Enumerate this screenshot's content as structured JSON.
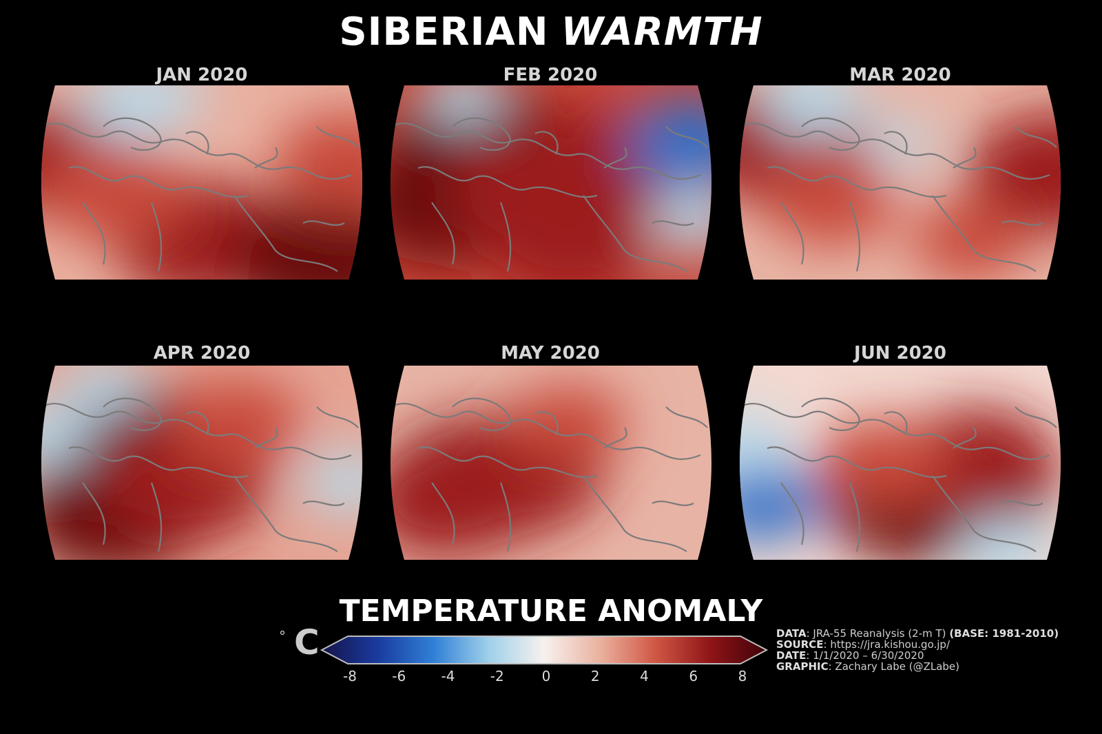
{
  "title": {
    "part1": "SIBERIAN",
    "part2": "WARMTH"
  },
  "panels": [
    {
      "label": "JAN 2020",
      "warm_blobs": [
        [
          0.1,
          0.4,
          0.8
        ],
        [
          0.5,
          0.8,
          0.9
        ],
        [
          0.86,
          0.9,
          1.0
        ],
        [
          0.25,
          0.55,
          0.7
        ],
        [
          0.92,
          0.4,
          0.7
        ]
      ],
      "cool_blobs": [
        [
          0.3,
          0.1,
          0.6
        ],
        [
          0.4,
          0.05,
          0.4
        ]
      ],
      "base": "#e9b0a0"
    },
    {
      "label": "FEB 2020",
      "warm_blobs": [
        [
          0.3,
          0.35,
          1.0
        ],
        [
          0.2,
          0.6,
          0.95
        ],
        [
          0.45,
          0.55,
          0.85
        ],
        [
          0.65,
          0.4,
          0.8
        ],
        [
          0.55,
          0.8,
          0.8
        ]
      ],
      "cool_blobs": [
        [
          0.9,
          0.3,
          0.8
        ],
        [
          0.92,
          0.7,
          0.5
        ],
        [
          0.25,
          0.05,
          0.4
        ]
      ],
      "base": "#c94a3c"
    },
    {
      "label": "MAR 2020",
      "warm_blobs": [
        [
          0.15,
          0.3,
          0.9
        ],
        [
          0.95,
          0.45,
          0.9
        ],
        [
          0.3,
          0.6,
          0.6
        ],
        [
          0.7,
          0.8,
          0.5
        ]
      ],
      "cool_blobs": [
        [
          0.25,
          0.08,
          0.6
        ],
        [
          0.5,
          0.3,
          0.3
        ]
      ],
      "base": "#e8b5a6"
    },
    {
      "label": "APR 2020",
      "warm_blobs": [
        [
          0.3,
          0.45,
          1.0
        ],
        [
          0.25,
          0.75,
          0.95
        ],
        [
          0.45,
          0.6,
          0.85
        ],
        [
          0.6,
          0.3,
          0.6
        ]
      ],
      "cool_blobs": [
        [
          0.05,
          0.35,
          0.5
        ],
        [
          0.92,
          0.6,
          0.5
        ],
        [
          0.22,
          0.1,
          0.4
        ]
      ],
      "base": "#e5a494"
    },
    {
      "label": "MAY 2020",
      "warm_blobs": [
        [
          0.3,
          0.6,
          0.95
        ],
        [
          0.4,
          0.55,
          0.9
        ],
        [
          0.2,
          0.7,
          0.8
        ],
        [
          0.55,
          0.3,
          0.5
        ]
      ],
      "cool_blobs": [],
      "base": "#e7b3a5"
    },
    {
      "label": "JUN 2020",
      "warm_blobs": [
        [
          0.55,
          0.68,
          1.0
        ],
        [
          0.68,
          0.62,
          0.95
        ],
        [
          0.72,
          0.5,
          0.8
        ],
        [
          0.45,
          0.5,
          0.6
        ]
      ],
      "cool_blobs": [
        [
          0.1,
          0.7,
          0.7
        ],
        [
          0.05,
          0.4,
          0.5
        ],
        [
          0.8,
          0.95,
          0.5
        ]
      ],
      "base": "#f2d8d0"
    }
  ],
  "legend": {
    "title": "TEMPERATURE ANOMALY",
    "unit_degree": "°",
    "unit_letter": "C",
    "ticks": [
      "-8",
      "-6",
      "-4",
      "-2",
      "0",
      "2",
      "4",
      "6",
      "8"
    ],
    "colormap": [
      "#16144a",
      "#1a3a9e",
      "#2f7fd6",
      "#9fd0ea",
      "#f7f1ee",
      "#eab29f",
      "#cf5744",
      "#8e1417",
      "#3e0309"
    ]
  },
  "credits": {
    "data_label": "DATA",
    "data_value": ": JRA-55 Reanalysis (2-m T)",
    "base_label": "(BASE: 1981-2010)",
    "source_label": "SOURCE",
    "source_value": ": https://jra.kishou.go.jp/",
    "date_label": "DATE",
    "date_value": ": 1/1/2020 – 6/30/2020",
    "graphic_label": "GRAPHIC",
    "graphic_value": ": Zachary Labe (@ZLabe)"
  },
  "colors": {
    "background": "#000000",
    "coastline": "#7b7b7b",
    "panel_label": "#d6d6d6"
  }
}
